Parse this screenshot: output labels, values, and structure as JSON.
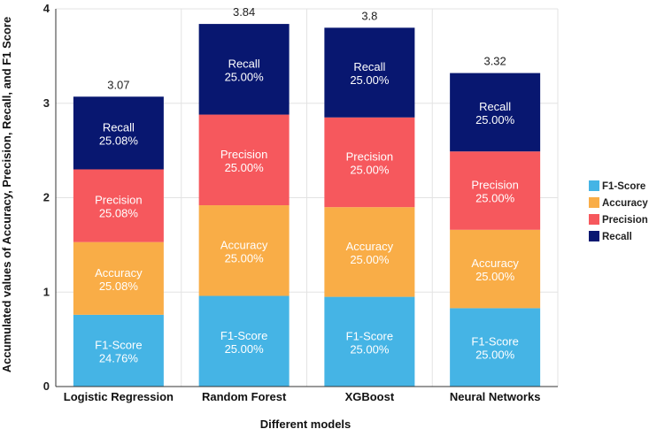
{
  "chart_data": {
    "type": "bar",
    "stacked": true,
    "xlabel": "Different models",
    "ylabel": "Accumulated values of Accuracy, Precision, Recall, and F1 Score",
    "categories": [
      "Logistic Regression",
      "Random Forest",
      "XGBoost",
      "Neural Networks"
    ],
    "ylim": [
      0,
      4
    ],
    "yticks": [
      "0",
      "1",
      "2",
      "3",
      "4"
    ],
    "totals": [
      "3.07",
      "3.84",
      "3.8",
      "3.32"
    ],
    "series": [
      {
        "name": "F1-Score",
        "color": "#45b4e5",
        "values": [
          0.76,
          0.96,
          0.95,
          0.83
        ],
        "labels": [
          "24.76%",
          "25.00%",
          "25.00%",
          "25.00%"
        ]
      },
      {
        "name": "Accuracy",
        "color": "#f9ad47",
        "values": [
          0.77,
          0.96,
          0.95,
          0.83
        ],
        "labels": [
          "25.08%",
          "25.00%",
          "25.00%",
          "25.00%"
        ]
      },
      {
        "name": "Precision",
        "color": "#f6585d",
        "values": [
          0.77,
          0.96,
          0.95,
          0.83
        ],
        "labels": [
          "25.08%",
          "25.00%",
          "25.00%",
          "25.00%"
        ]
      },
      {
        "name": "Recall",
        "color": "#081770",
        "values": [
          0.77,
          0.96,
          0.95,
          0.83
        ],
        "labels": [
          "25.08%",
          "25.00%",
          "25.00%",
          "25.00%"
        ]
      }
    ],
    "grid": true,
    "legend_position": "right"
  }
}
